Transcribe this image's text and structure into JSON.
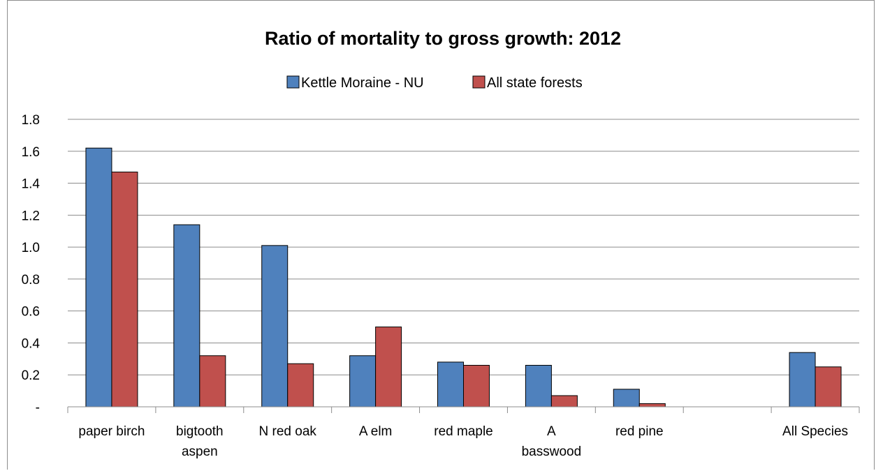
{
  "chart_data": {
    "type": "bar",
    "title": "Ratio of mortality to gross growth: 2012",
    "categories": [
      [
        "paper birch"
      ],
      [
        "bigtooth",
        "aspen"
      ],
      [
        "N red oak"
      ],
      [
        "A elm"
      ],
      [
        "red maple"
      ],
      [
        "A",
        "basswood"
      ],
      [
        "red pine"
      ],
      [
        ""
      ],
      [
        "All Species"
      ]
    ],
    "series": [
      {
        "name": "Kettle Moraine - NU",
        "color": "#4f81bd",
        "values": [
          1.62,
          1.14,
          1.01,
          0.32,
          0.28,
          0.26,
          0.11,
          null,
          0.34
        ]
      },
      {
        "name": "All state forests",
        "color": "#c0504d",
        "values": [
          1.47,
          0.32,
          0.27,
          0.5,
          0.26,
          0.07,
          0.02,
          null,
          0.25
        ]
      }
    ],
    "ylim": [
      0,
      1.8
    ],
    "yticks": [
      "-",
      "0.2",
      "0.4",
      "0.6",
      "0.8",
      "1.0",
      "1.2",
      "1.4",
      "1.6",
      "1.8"
    ],
    "grid": true,
    "legend_position": "top"
  }
}
